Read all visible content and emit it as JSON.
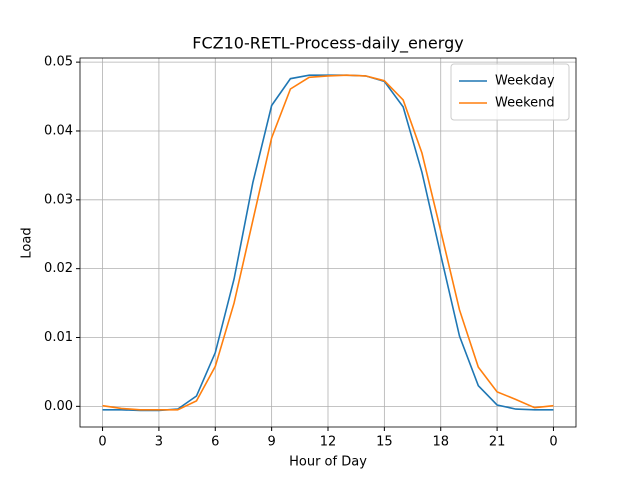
{
  "chart_data": {
    "type": "line",
    "title": "FCZ10-RETL-Process-daily_energy",
    "x_label": "Hour of Day",
    "y_label": "Load",
    "x": [
      0,
      1,
      2,
      3,
      4,
      5,
      6,
      7,
      8,
      9,
      10,
      11,
      12,
      13,
      14,
      15,
      16,
      17,
      18,
      19,
      20,
      21,
      22,
      23,
      24
    ],
    "series": [
      {
        "name": "Weekday",
        "color": "#1f77b4",
        "values": [
          -0.0005,
          -0.0005,
          -0.0006,
          -0.0006,
          -0.0004,
          0.0015,
          0.0078,
          0.0185,
          0.0325,
          0.0437,
          0.0476,
          0.0481,
          0.0481,
          0.0481,
          0.048,
          0.0472,
          0.0435,
          0.034,
          0.022,
          0.0102,
          0.003,
          0.0002,
          -0.0004,
          -0.0005,
          -0.0005
        ]
      },
      {
        "name": "Weekend",
        "color": "#ff7f0e",
        "values": [
          0.0001,
          -0.0003,
          -0.0005,
          -0.0005,
          -0.0005,
          0.0008,
          0.0058,
          0.015,
          0.027,
          0.039,
          0.0461,
          0.0478,
          0.048,
          0.0481,
          0.048,
          0.0473,
          0.0445,
          0.0368,
          0.0255,
          0.014,
          0.0057,
          0.0021,
          0.001,
          -0.0002,
          0.0001
        ]
      }
    ],
    "xlim": [
      -1.2,
      25.2
    ],
    "xticks": [
      0,
      3,
      6,
      9,
      12,
      15,
      18,
      21,
      {
        "value": 24,
        "label": "0"
      }
    ],
    "ylim": [
      -0.003,
      0.0506
    ],
    "yticks": [
      {
        "value": 0,
        "label": "0.00"
      },
      0.01,
      0.02,
      0.03,
      0.04,
      0.05
    ],
    "grid": true,
    "legend": "upper-right"
  }
}
